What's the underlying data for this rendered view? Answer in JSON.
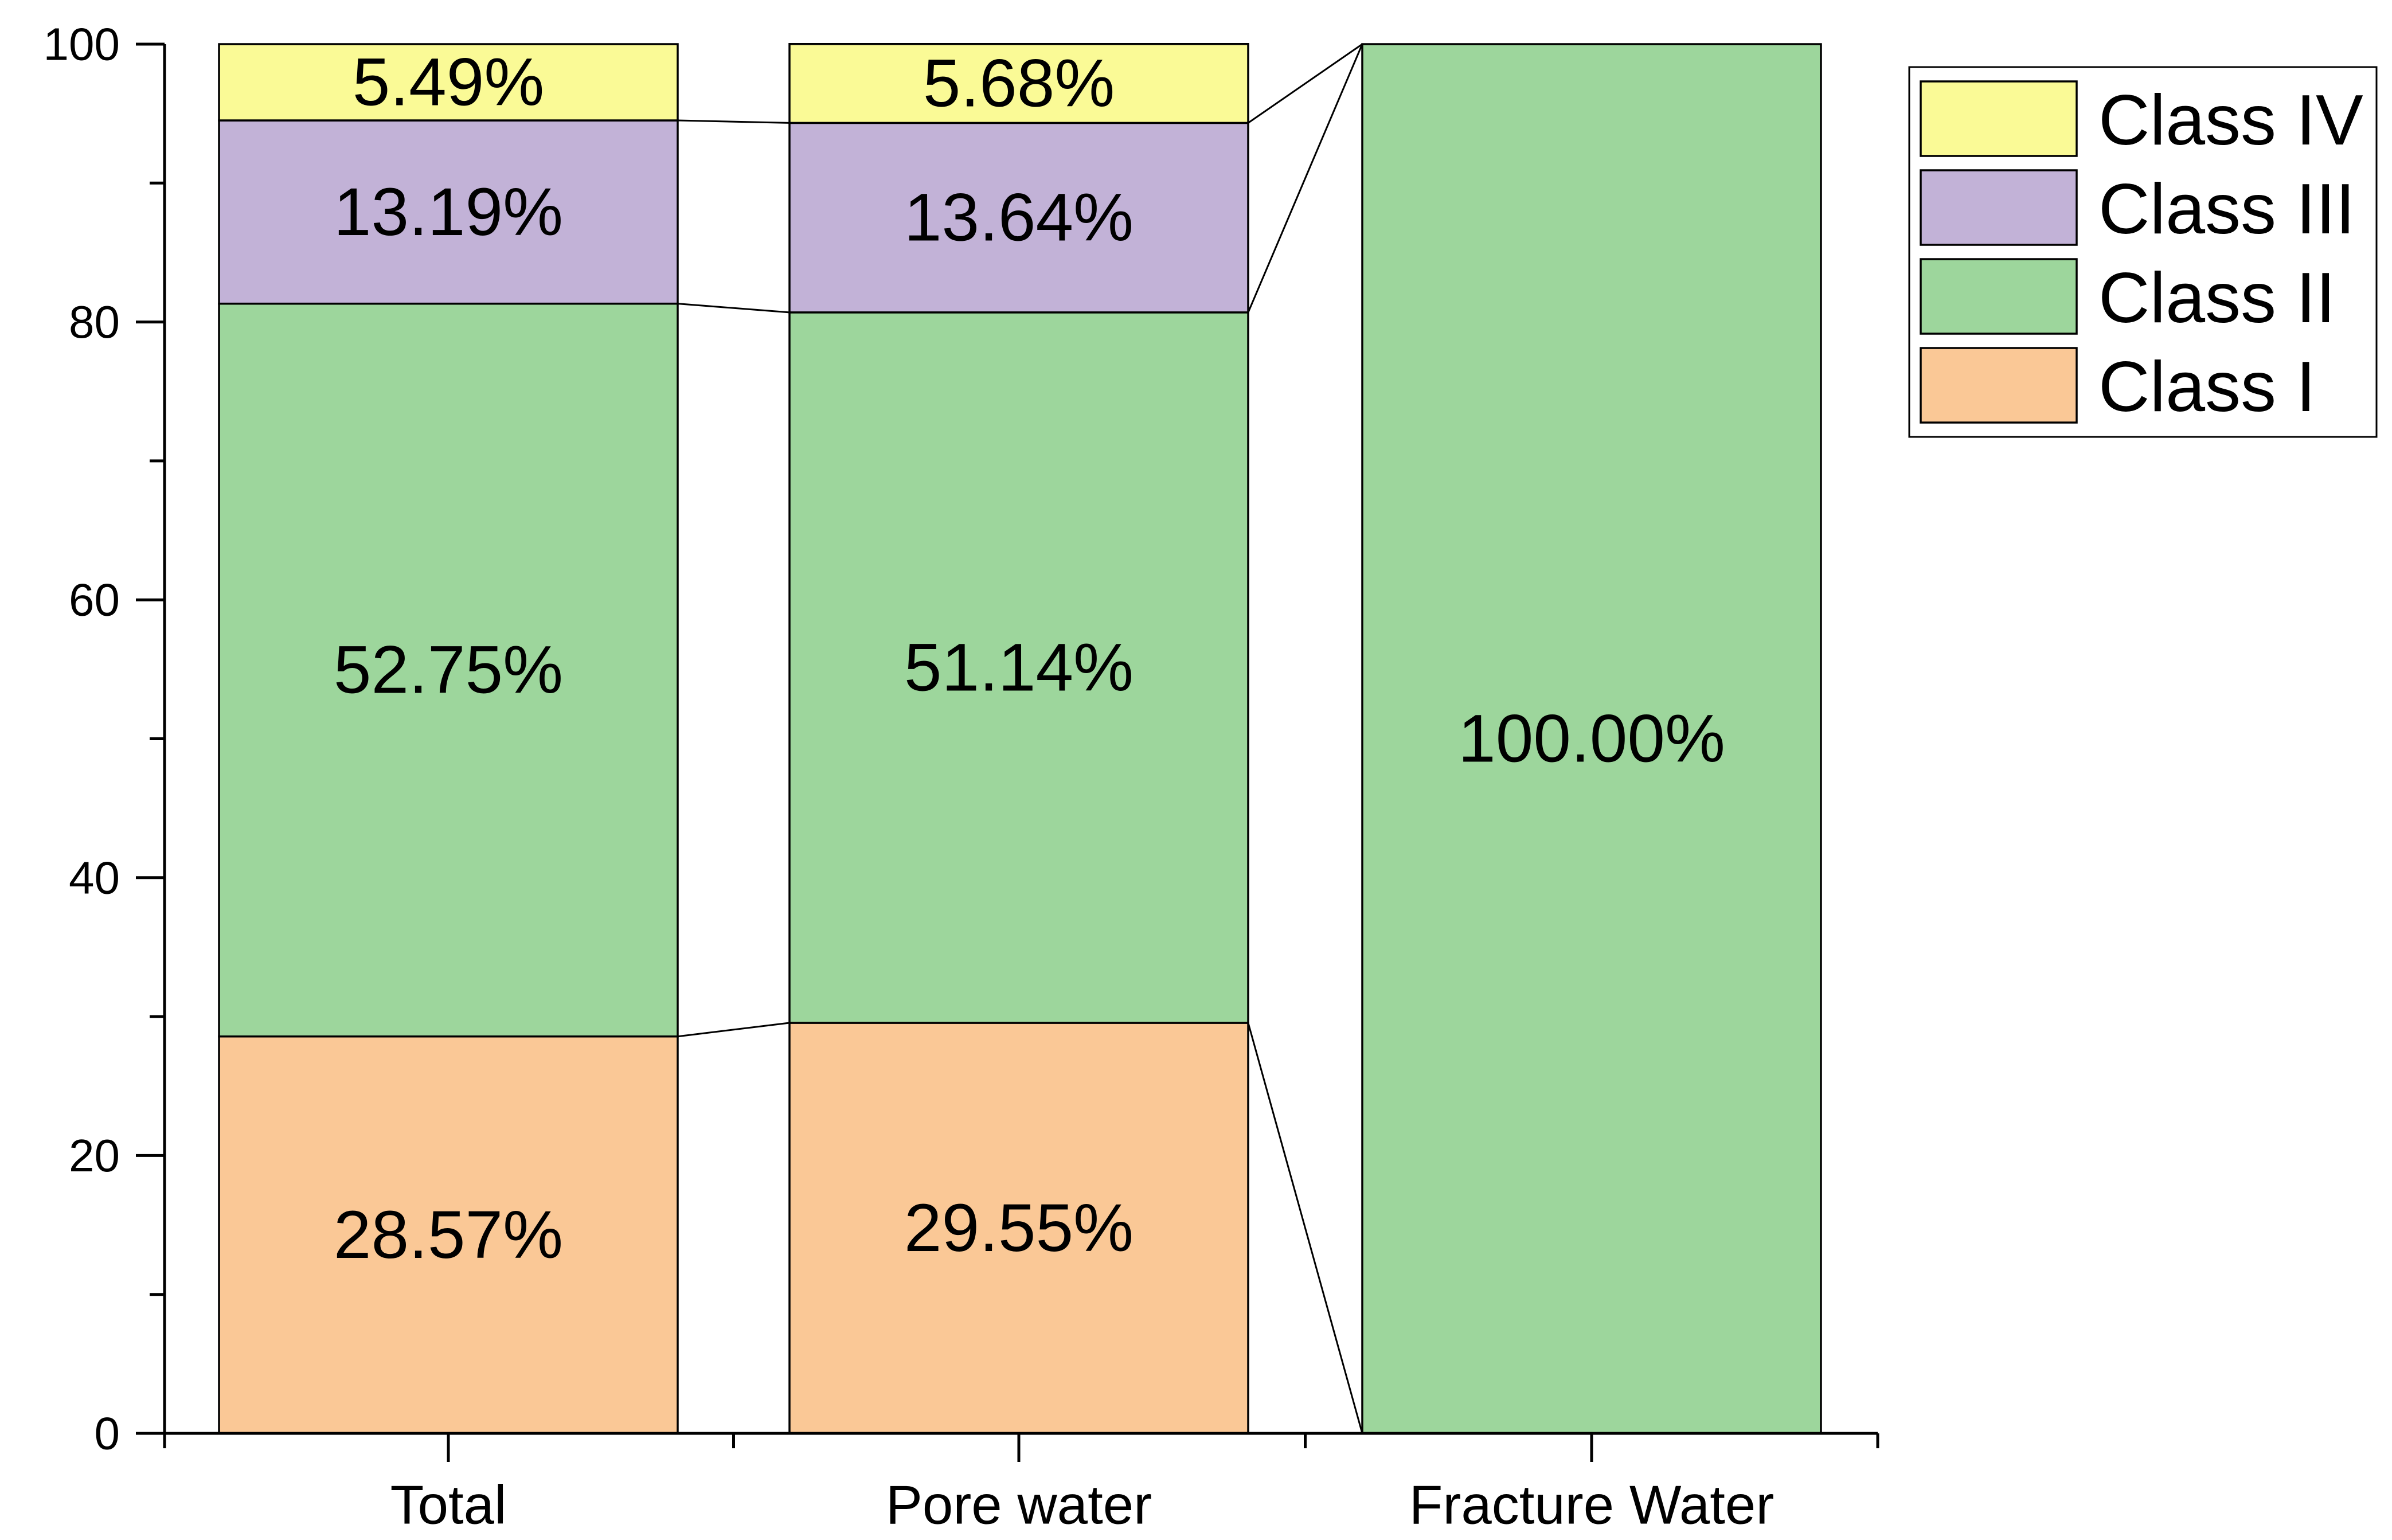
{
  "chart_data": {
    "type": "bar",
    "stacked": true,
    "categories": [
      "Total",
      "Pore water",
      "Fracture Water"
    ],
    "ylim": [
      0,
      100
    ],
    "yticks": [
      0,
      20,
      40,
      60,
      80,
      100
    ],
    "xlabel": "",
    "ylabel": "",
    "legend_position": "top-right",
    "connect_segments": true,
    "series": [
      {
        "name": "Class I",
        "color": "#fac896",
        "values": [
          28.57,
          29.55,
          0
        ],
        "labels": [
          "28.57%",
          "29.55%",
          ""
        ]
      },
      {
        "name": "Class II",
        "color": "#9dd69c",
        "values": [
          52.75,
          51.14,
          100.0
        ],
        "labels": [
          "52.75%",
          "51.14%",
          "100.00%"
        ]
      },
      {
        "name": "Class III",
        "color": "#c2b2d7",
        "values": [
          13.19,
          13.64,
          0
        ],
        "labels": [
          "13.19%",
          "13.64%",
          ""
        ]
      },
      {
        "name": "Class IV",
        "color": "#fafa96",
        "values": [
          5.49,
          5.68,
          0
        ],
        "labels": [
          "5.49%",
          "5.68%",
          ""
        ]
      }
    ],
    "legend_order": [
      "Class IV",
      "Class III",
      "Class II",
      "Class I"
    ]
  }
}
